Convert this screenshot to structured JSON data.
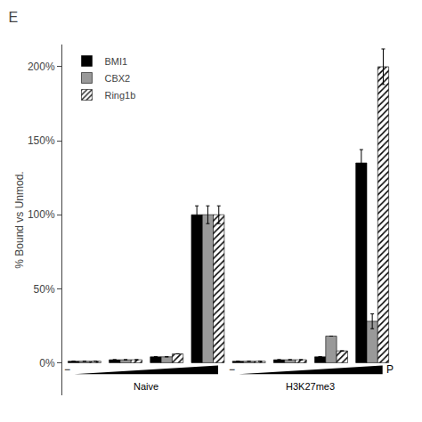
{
  "chart_data": {
    "type": "bar",
    "title": "E",
    "y_label": "% Bound vs Unmod.",
    "categories": [
      null,
      null,
      null,
      null,
      null,
      null,
      null,
      null
    ],
    "series": [
      {
        "name": "BMI1",
        "color": "#000000",
        "values": [
          1,
          2,
          4,
          100,
          1,
          2,
          4,
          135
        ],
        "errors": [
          null,
          null,
          null,
          6,
          null,
          null,
          null,
          9
        ]
      },
      {
        "name": "CBX2",
        "color": "#999999",
        "values": [
          1,
          2,
          4,
          100,
          1,
          2,
          18,
          28
        ],
        "errors": [
          null,
          null,
          null,
          6,
          null,
          null,
          null,
          5
        ]
      },
      {
        "name": "Ring1b",
        "color": "#ffffff",
        "marker": "hatch",
        "values": [
          1,
          2,
          6,
          100,
          1,
          2,
          8,
          200
        ],
        "errors": [
          null,
          null,
          null,
          6,
          null,
          null,
          null,
          12
        ]
      }
    ],
    "annotations": [
      {
        "text": "−",
        "x": -0.42
      },
      {
        "text": "−",
        "x": 3.58
      },
      {
        "text": "P",
        "x": 7.3
      },
      {
        "text": "Naive",
        "x": 1.5
      },
      {
        "text": "H3K27me3",
        "x": 5.5
      }
    ],
    "ylim": [
      -22,
      215
    ],
    "yticks": [
      {
        "value": 0,
        "label": "0%"
      },
      {
        "value": 50,
        "label": "50%"
      },
      {
        "value": 100,
        "label": "100%"
      },
      {
        "value": 150,
        "label": "150%"
      },
      {
        "value": 200,
        "label": "200%"
      }
    ],
    "tick_labels": "y",
    "grid": false,
    "legend": "upper left"
  }
}
